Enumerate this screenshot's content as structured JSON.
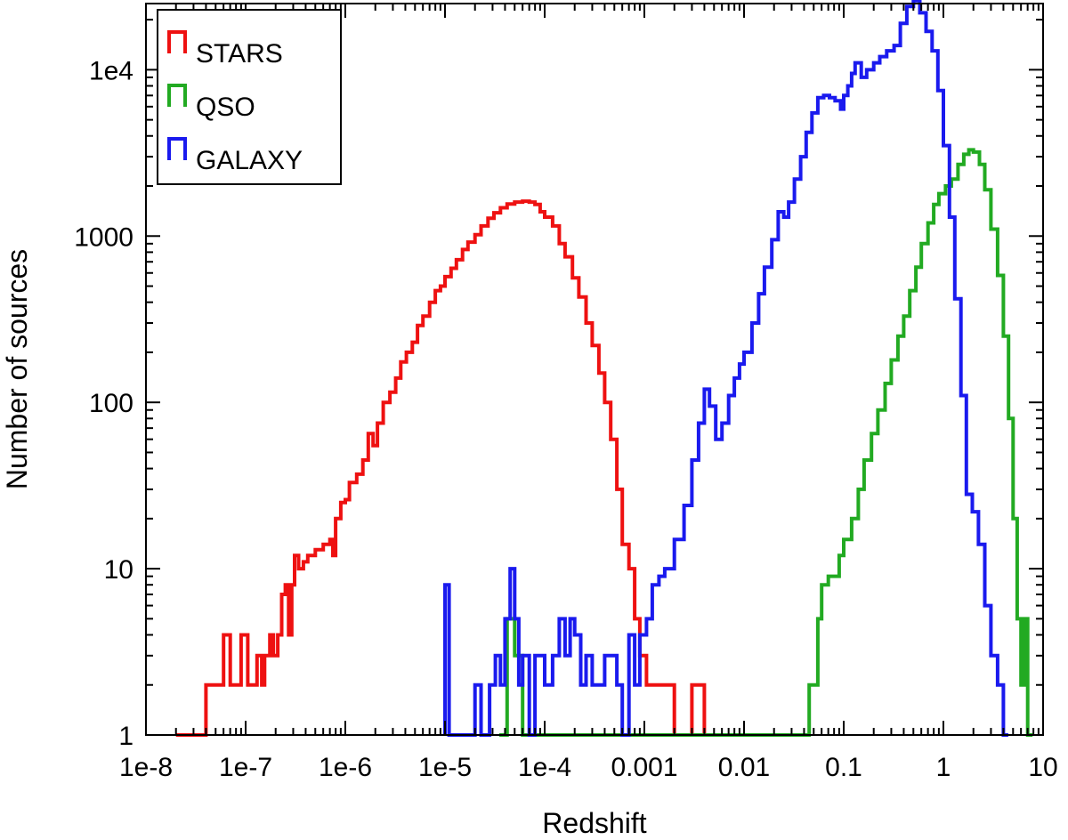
{
  "chart_data": {
    "type": "line",
    "title": "",
    "xlabel": "Redshift",
    "ylabel": "Number of sources",
    "xscale": "log",
    "yscale": "log",
    "xlim": [
      1e-08,
      10
    ],
    "ylim": [
      1,
      25000
    ],
    "grid": false,
    "legend_position": "top-left",
    "x_ticks": [
      {
        "value": 1e-08,
        "label": "1e-8"
      },
      {
        "value": 1e-07,
        "label": "1e-7"
      },
      {
        "value": 1e-06,
        "label": "1e-6"
      },
      {
        "value": 1e-05,
        "label": "1e-5"
      },
      {
        "value": 0.0001,
        "label": "1e-4"
      },
      {
        "value": 0.001,
        "label": "0.001"
      },
      {
        "value": 0.01,
        "label": "0.01"
      },
      {
        "value": 0.1,
        "label": "0.1"
      },
      {
        "value": 1,
        "label": "1"
      },
      {
        "value": 10,
        "label": "10"
      }
    ],
    "y_ticks": [
      {
        "value": 1,
        "label": "1"
      },
      {
        "value": 10,
        "label": "10"
      },
      {
        "value": 100,
        "label": "100"
      },
      {
        "value": 1000,
        "label": "1000"
      },
      {
        "value": 10000,
        "label": "1e4"
      }
    ],
    "series": [
      {
        "name": "STARS",
        "color": "#ee1111",
        "points": [
          [
            2e-08,
            1
          ],
          [
            4e-08,
            2
          ],
          [
            5.5e-08,
            2
          ],
          [
            6e-08,
            4
          ],
          [
            7e-08,
            2
          ],
          [
            8e-08,
            2
          ],
          [
            9e-08,
            4
          ],
          [
            1.05e-07,
            2
          ],
          [
            1.2e-07,
            2
          ],
          [
            1.3e-07,
            3
          ],
          [
            1.45e-07,
            2
          ],
          [
            1.55e-07,
            3
          ],
          [
            1.65e-07,
            3
          ],
          [
            1.75e-07,
            4
          ],
          [
            1.9e-07,
            3
          ],
          [
            2.1e-07,
            4
          ],
          [
            2.3e-07,
            7
          ],
          [
            2.5e-07,
            8
          ],
          [
            2.7e-07,
            4
          ],
          [
            2.9e-07,
            8
          ],
          [
            3.1e-07,
            12
          ],
          [
            3.4e-07,
            10
          ],
          [
            3.8e-07,
            11
          ],
          [
            4.2e-07,
            12
          ],
          [
            5e-07,
            13
          ],
          [
            6e-07,
            14
          ],
          [
            7e-07,
            15
          ],
          [
            7.5e-07,
            12
          ],
          [
            8e-07,
            20
          ],
          [
            9e-07,
            25
          ],
          [
            1e-06,
            26
          ],
          [
            1.1e-06,
            33
          ],
          [
            1.3e-06,
            37
          ],
          [
            1.5e-06,
            45
          ],
          [
            1.7e-06,
            65
          ],
          [
            1.9e-06,
            55
          ],
          [
            2.1e-06,
            75
          ],
          [
            2.4e-06,
            100
          ],
          [
            2.8e-06,
            115
          ],
          [
            3.2e-06,
            140
          ],
          [
            3.6e-06,
            175
          ],
          [
            4.1e-06,
            200
          ],
          [
            4.7e-06,
            230
          ],
          [
            5.3e-06,
            290
          ],
          [
            6e-06,
            330
          ],
          [
            7e-06,
            400
          ],
          [
            8e-06,
            470
          ],
          [
            9e-06,
            500
          ],
          [
            1e-05,
            570
          ],
          [
            1.15e-05,
            640
          ],
          [
            1.3e-05,
            720
          ],
          [
            1.5e-05,
            830
          ],
          [
            1.7e-05,
            920
          ],
          [
            2e-05,
            1020
          ],
          [
            2.3e-05,
            1150
          ],
          [
            2.7e-05,
            1280
          ],
          [
            3.1e-05,
            1380
          ],
          [
            3.6e-05,
            1480
          ],
          [
            4.2e-05,
            1560
          ],
          [
            5e-05,
            1600
          ],
          [
            6e-05,
            1620
          ],
          [
            7e-05,
            1600
          ],
          [
            8e-05,
            1550
          ],
          [
            9e-05,
            1400
          ],
          [
            0.0001,
            1300
          ],
          [
            0.00012,
            1150
          ],
          [
            0.00014,
            900
          ],
          [
            0.00016,
            750
          ],
          [
            0.00019,
            560
          ],
          [
            0.00022,
            430
          ],
          [
            0.00026,
            300
          ],
          [
            0.0003,
            220
          ],
          [
            0.00035,
            150
          ],
          [
            0.0004,
            100
          ],
          [
            0.00046,
            60
          ],
          [
            0.00053,
            30
          ],
          [
            0.0006,
            14
          ],
          [
            0.0007,
            10
          ],
          [
            0.0008,
            5
          ],
          [
            0.0009,
            3
          ],
          [
            0.00105,
            2
          ],
          [
            0.0012,
            2
          ],
          [
            0.0015,
            2
          ],
          [
            0.002,
            1
          ],
          [
            0.003,
            2
          ],
          [
            0.004,
            1
          ]
        ]
      },
      {
        "name": "QSO",
        "color": "#22aa22",
        "points": [
          [
            3.5e-05,
            1
          ],
          [
            4.2e-05,
            5
          ],
          [
            5e-05,
            3
          ],
          [
            6e-05,
            1
          ],
          [
            0.045,
            2
          ],
          [
            0.05,
            2
          ],
          [
            0.055,
            5
          ],
          [
            0.06,
            8
          ],
          [
            0.07,
            9
          ],
          [
            0.08,
            9
          ],
          [
            0.09,
            12
          ],
          [
            0.1,
            15
          ],
          [
            0.12,
            20
          ],
          [
            0.14,
            30
          ],
          [
            0.16,
            45
          ],
          [
            0.19,
            65
          ],
          [
            0.22,
            90
          ],
          [
            0.26,
            130
          ],
          [
            0.3,
            180
          ],
          [
            0.35,
            250
          ],
          [
            0.4,
            330
          ],
          [
            0.46,
            470
          ],
          [
            0.53,
            650
          ],
          [
            0.6,
            900
          ],
          [
            0.7,
            1200
          ],
          [
            0.8,
            1550
          ],
          [
            0.9,
            1800
          ],
          [
            1.05,
            2000
          ],
          [
            1.2,
            2200
          ],
          [
            1.4,
            2700
          ],
          [
            1.6,
            3100
          ],
          [
            1.8,
            3300
          ],
          [
            2.0,
            3200
          ],
          [
            2.3,
            2700
          ],
          [
            2.6,
            1900
          ],
          [
            3.0,
            1100
          ],
          [
            3.5,
            580
          ],
          [
            4.0,
            250
          ],
          [
            4.5,
            80
          ],
          [
            5.0,
            20
          ],
          [
            5.5,
            5
          ],
          [
            6.0,
            2
          ],
          [
            6.5,
            5
          ],
          [
            7.0,
            1
          ]
        ]
      },
      {
        "name": "GALAXY",
        "color": "#1a1aee",
        "points": [
          [
            1e-05,
            8
          ],
          [
            1.1e-05,
            1
          ],
          [
            2e-05,
            2
          ],
          [
            2.3e-05,
            1
          ],
          [
            2.8e-05,
            2
          ],
          [
            3.2e-05,
            3
          ],
          [
            3.6e-05,
            2
          ],
          [
            4e-05,
            5
          ],
          [
            4.5e-05,
            10
          ],
          [
            5e-05,
            5
          ],
          [
            5.5e-05,
            2
          ],
          [
            6e-05,
            3
          ],
          [
            7e-05,
            1
          ],
          [
            8e-05,
            3
          ],
          [
            9e-05,
            3
          ],
          [
            0.0001,
            2
          ],
          [
            0.00012,
            3
          ],
          [
            0.00014,
            5
          ],
          [
            0.00016,
            3
          ],
          [
            0.00018,
            5
          ],
          [
            0.0002,
            4
          ],
          [
            0.00023,
            2
          ],
          [
            0.00026,
            3
          ],
          [
            0.0003,
            2
          ],
          [
            0.00035,
            2
          ],
          [
            0.0004,
            3
          ],
          [
            0.00046,
            3
          ],
          [
            0.00053,
            2
          ],
          [
            0.0006,
            1
          ],
          [
            0.0007,
            4
          ],
          [
            0.0008,
            2
          ],
          [
            0.0009,
            4
          ],
          [
            0.00105,
            5
          ],
          [
            0.0012,
            8
          ],
          [
            0.0014,
            9
          ],
          [
            0.0016,
            10
          ],
          [
            0.002,
            15
          ],
          [
            0.0025,
            24
          ],
          [
            0.003,
            45
          ],
          [
            0.0035,
            75
          ],
          [
            0.004,
            120
          ],
          [
            0.0045,
            95
          ],
          [
            0.0052,
            60
          ],
          [
            0.006,
            75
          ],
          [
            0.007,
            110
          ],
          [
            0.008,
            140
          ],
          [
            0.009,
            170
          ],
          [
            0.01,
            200
          ],
          [
            0.012,
            300
          ],
          [
            0.014,
            450
          ],
          [
            0.016,
            650
          ],
          [
            0.019,
            950
          ],
          [
            0.022,
            1400
          ],
          [
            0.025,
            1300
          ],
          [
            0.028,
            1600
          ],
          [
            0.032,
            2200
          ],
          [
            0.037,
            3000
          ],
          [
            0.042,
            4200
          ],
          [
            0.048,
            5500
          ],
          [
            0.055,
            6800
          ],
          [
            0.063,
            7000
          ],
          [
            0.072,
            6800
          ],
          [
            0.082,
            6500
          ],
          [
            0.093,
            5800
          ],
          [
            0.1,
            7000
          ],
          [
            0.11,
            8000
          ],
          [
            0.12,
            9500
          ],
          [
            0.13,
            11000
          ],
          [
            0.15,
            9000
          ],
          [
            0.17,
            10000
          ],
          [
            0.2,
            11000
          ],
          [
            0.23,
            12000
          ],
          [
            0.27,
            13000
          ],
          [
            0.32,
            14000
          ],
          [
            0.37,
            19000
          ],
          [
            0.43,
            24000
          ],
          [
            0.5,
            26000
          ],
          [
            0.58,
            22000
          ],
          [
            0.67,
            17000
          ],
          [
            0.77,
            13000
          ],
          [
            0.88,
            7500
          ],
          [
            1.0,
            3500
          ],
          [
            1.15,
            1300
          ],
          [
            1.3,
            420
          ],
          [
            1.5,
            110
          ],
          [
            1.7,
            28
          ],
          [
            1.95,
            22
          ],
          [
            2.25,
            14
          ],
          [
            2.6,
            6
          ],
          [
            3.0,
            3
          ],
          [
            3.5,
            2
          ],
          [
            4.0,
            1
          ]
        ]
      }
    ]
  }
}
